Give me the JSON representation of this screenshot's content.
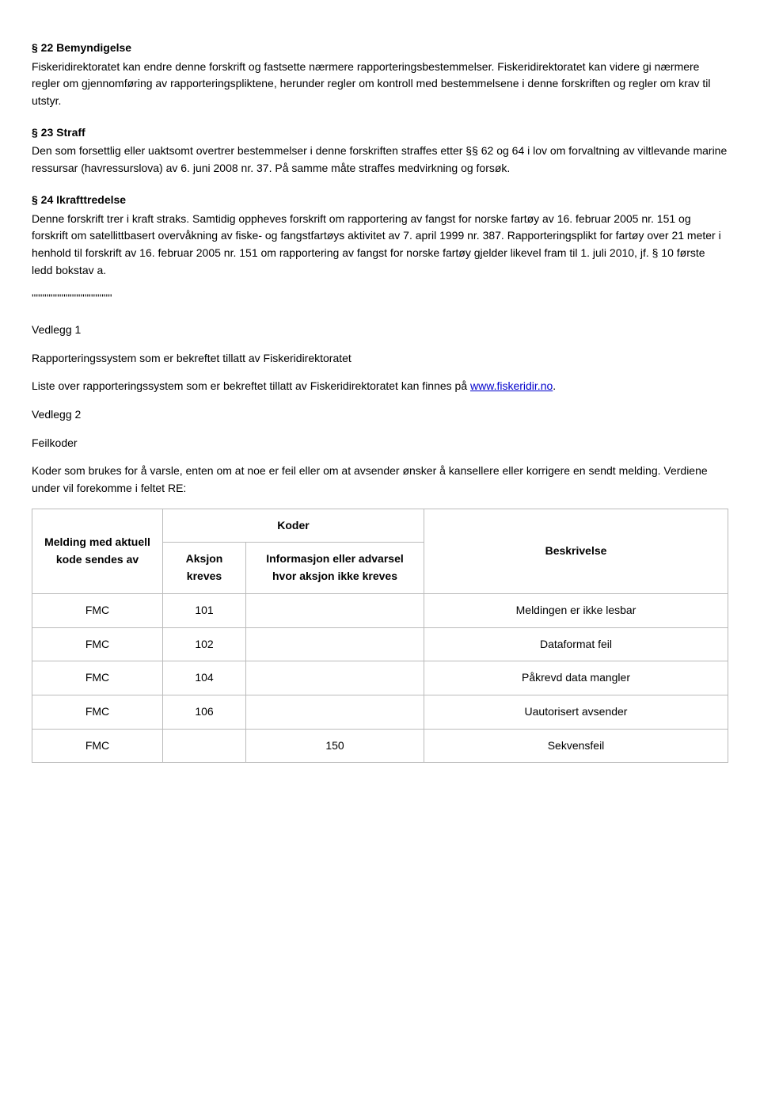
{
  "s22": {
    "heading": "§ 22 Bemyndigelse",
    "p1": "Fiskeridirektoratet kan endre denne forskrift og fastsette nærmere rapporteringsbestemmelser. Fiskeridirektoratet kan videre gi nærmere regler om gjennomføring av rapporteringspliktene, herunder regler om kontroll med bestemmelsene i denne forskriften og regler om krav til utstyr."
  },
  "s23": {
    "heading": "§ 23 Straff",
    "p1": "Den som forsettlig eller uaktsomt overtrer bestemmelser i denne forskriften straffes etter §§ 62 og 64 i lov om forvaltning av viltlevande marine ressursar (havressurslova) av 6. juni 2008 nr. 37. På samme måte straffes medvirkning og forsøk."
  },
  "s24": {
    "heading": "§ 24 Ikrafttredelse",
    "p1": "Denne forskrift trer i kraft straks. Samtidig oppheves forskrift om rapportering av fangst for norske fartøy av 16. februar 2005 nr. 151 og forskrift om satellittbasert overvåkning av fiske- og fangstfartøys aktivitet av 7. april 1999 nr. 387. Rapporteringsplikt for fartøy over 21 meter i henhold til forskrift av 16. februar 2005 nr. 151 om rapportering av fangst for norske fartøy gjelder likevel fram til 1. juli 2010, jf. § 10 første ledd bokstav a."
  },
  "quotes": "''''''''''''''''''''''''''''''''''''''",
  "vedlegg1": {
    "heading": "Vedlegg 1",
    "sub": "Rapporteringssystem som er bekreftet tillatt av Fiskeridirektoratet",
    "p1_pre": "Liste over rapporteringssystem som er bekreftet tillatt av Fiskeridirektoratet kan finnes på ",
    "link": "www.fiskeridir.no",
    "p1_post": "."
  },
  "vedlegg2": {
    "heading": "Vedlegg 2",
    "sub": "Feilkoder",
    "p1": "Koder som brukes for å varsle, enten om at noe er feil eller om at avsender ønsker å kansellere eller korrigere en sendt melding. Verdiene under vil forekomme i feltet RE:"
  },
  "table": {
    "headers": {
      "melding": "Melding med aktuell kode sendes av",
      "koder": "Koder",
      "aksjon": "Aksjon kreves",
      "info": "Informasjon eller advarsel hvor aksjon ikke kreves",
      "besk": "Beskrivelse"
    },
    "rows": [
      {
        "melding": "FMC",
        "aksjon": "101",
        "info": "",
        "besk": "Meldingen er ikke lesbar"
      },
      {
        "melding": "FMC",
        "aksjon": "102",
        "info": "",
        "besk": "Dataformat feil"
      },
      {
        "melding": "FMC",
        "aksjon": "104",
        "info": "",
        "besk": "Påkrevd data mangler"
      },
      {
        "melding": "FMC",
        "aksjon": "106",
        "info": "",
        "besk": "Uautorisert avsender"
      },
      {
        "melding": "FMC",
        "aksjon": "",
        "info": "150",
        "besk": "Sekvensfeil"
      }
    ]
  }
}
